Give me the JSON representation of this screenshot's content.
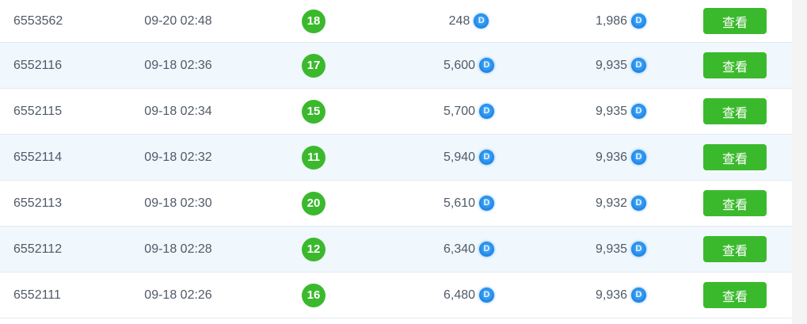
{
  "table": {
    "coin_letter": "D",
    "rows": [
      {
        "id": "6553562",
        "time": "09-20 02:48",
        "badge": "18",
        "amount1": "248",
        "amount2": "1,986",
        "action": "查看"
      },
      {
        "id": "6552116",
        "time": "09-18 02:36",
        "badge": "17",
        "amount1": "5,600",
        "amount2": "9,935",
        "action": "查看"
      },
      {
        "id": "6552115",
        "time": "09-18 02:34",
        "badge": "15",
        "amount1": "5,700",
        "amount2": "9,935",
        "action": "查看"
      },
      {
        "id": "6552114",
        "time": "09-18 02:32",
        "badge": "11",
        "amount1": "5,940",
        "amount2": "9,936",
        "action": "查看"
      },
      {
        "id": "6552113",
        "time": "09-18 02:30",
        "badge": "20",
        "amount1": "5,610",
        "amount2": "9,932",
        "action": "查看"
      },
      {
        "id": "6552112",
        "time": "09-18 02:28",
        "badge": "12",
        "amount1": "6,340",
        "amount2": "9,935",
        "action": "查看"
      },
      {
        "id": "6552111",
        "time": "09-18 02:26",
        "badge": "16",
        "amount1": "6,480",
        "amount2": "9,936",
        "action": "查看"
      }
    ]
  },
  "colors": {
    "accent_green": "#3bb92d",
    "coin_blue": "#2d96f0",
    "row_alt_background": "#f0f7fd",
    "row_divider": "#e4e9ef",
    "text": "#4f5a68",
    "gutter_gray": "#f4f4f5"
  }
}
